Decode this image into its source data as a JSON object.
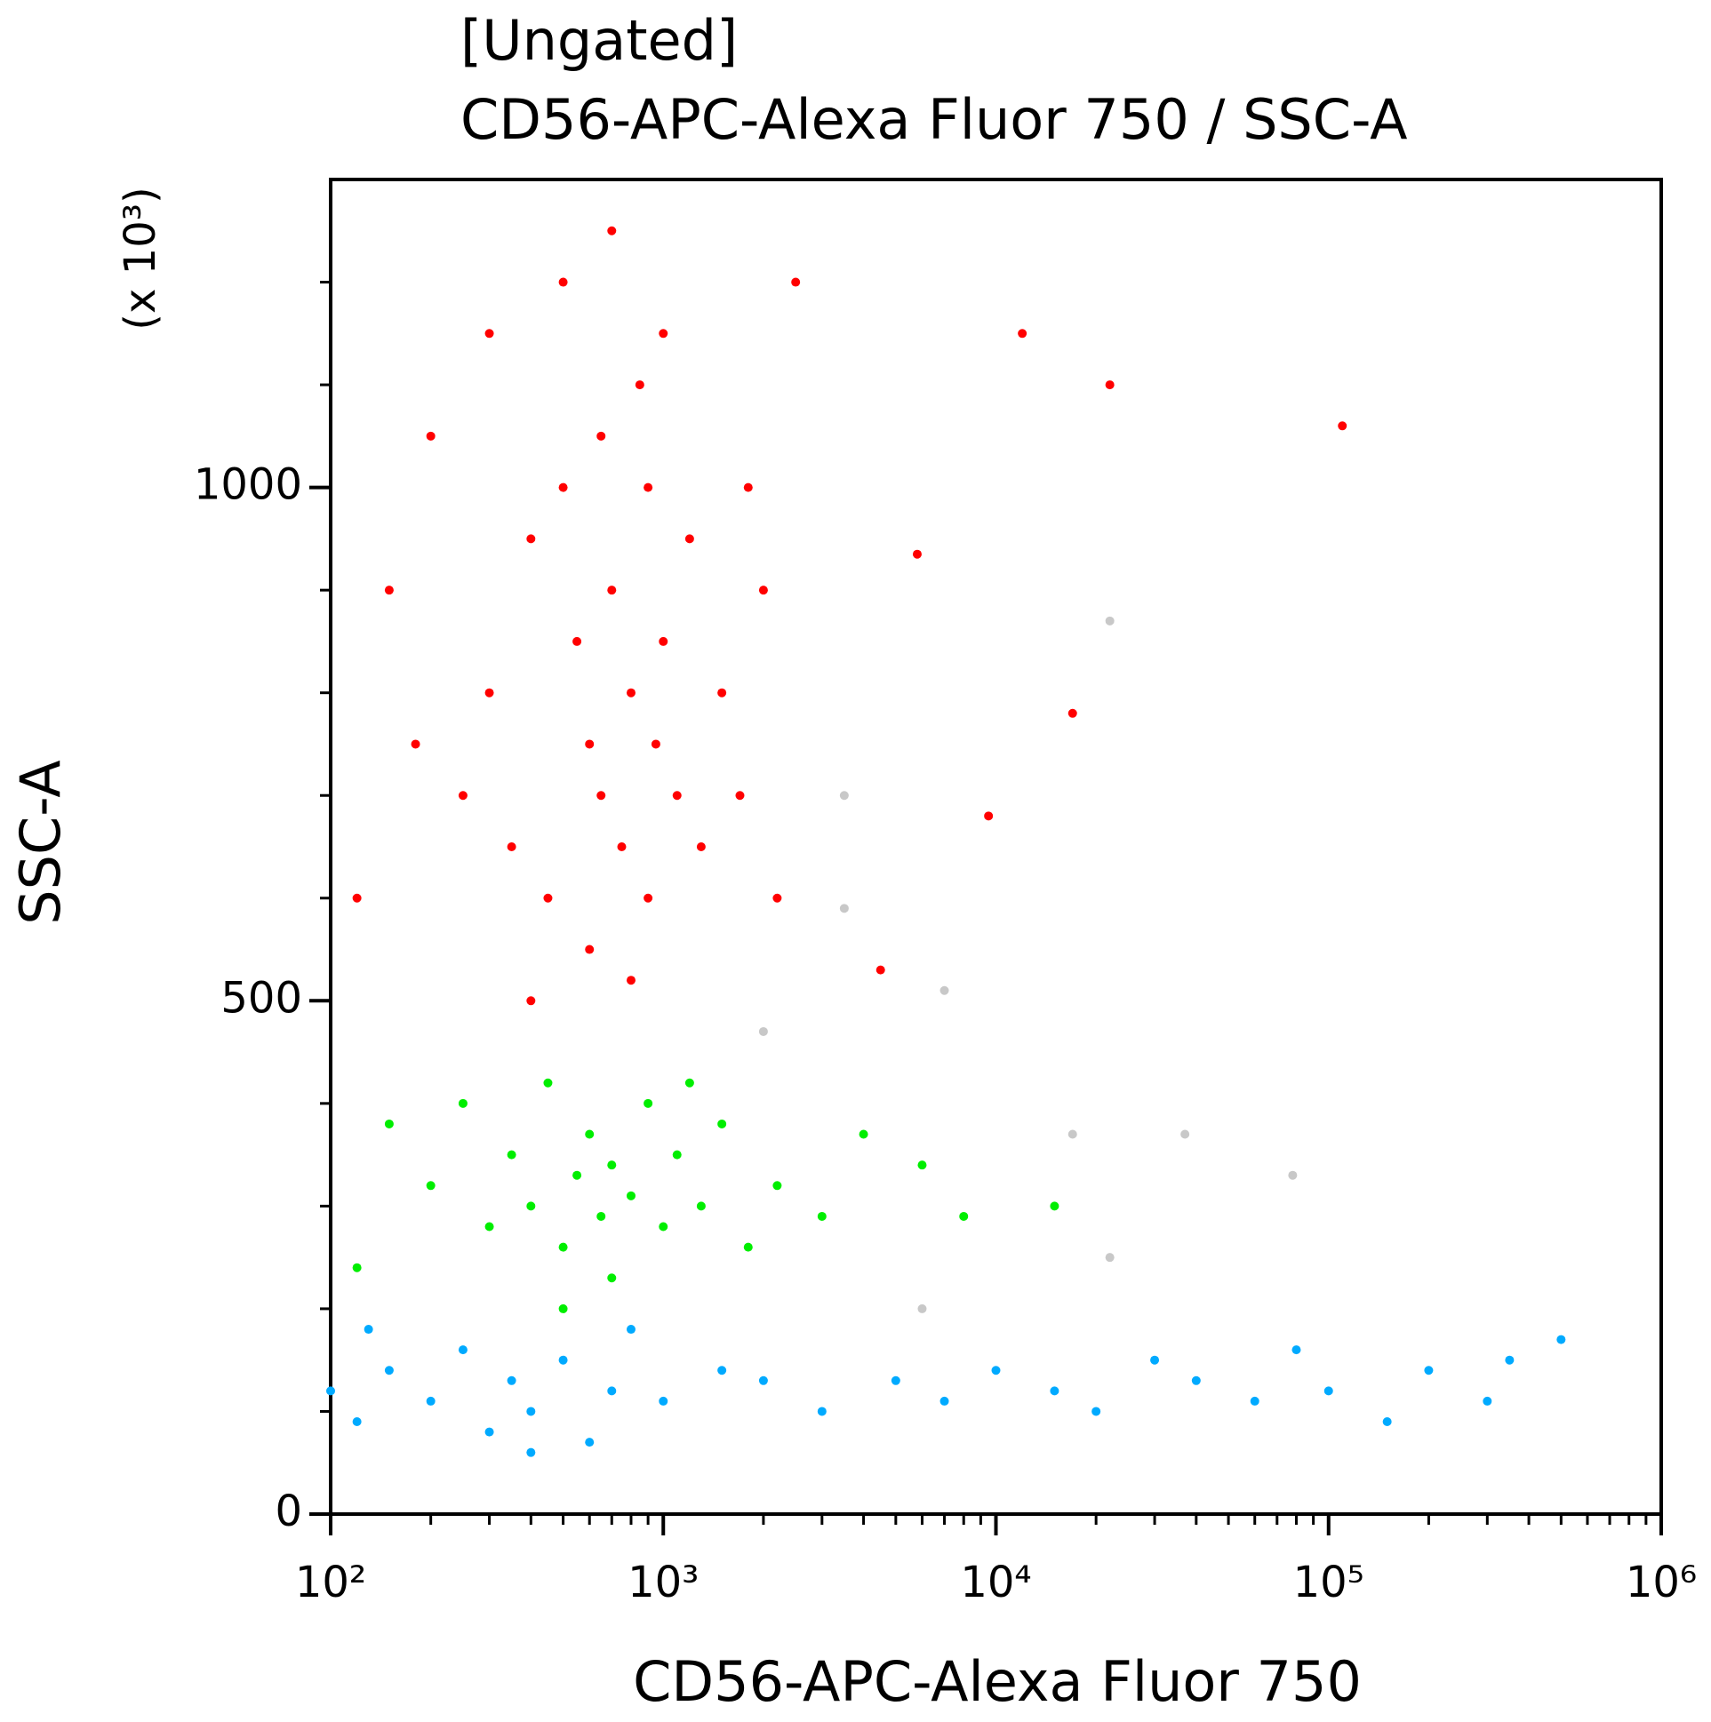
{
  "chart_data": {
    "type": "scatter",
    "title": "[Ungated]",
    "subtitle": "CD56-APC-Alexa Fluor 750 / SSC-A",
    "x_label": "CD56-APC-Alexa Fluor 750",
    "y_label": "SSC-A",
    "y_unit": "(x 10³)",
    "x_scale": "log",
    "xlim": [
      100,
      1000000
    ],
    "xticks": [
      {
        "value": 100,
        "label": "10²"
      },
      {
        "value": 1000,
        "label": "10³"
      },
      {
        "value": 10000,
        "label": "10⁴"
      },
      {
        "value": 100000,
        "label": "10⁵"
      },
      {
        "value": 1000000,
        "label": "10⁶"
      }
    ],
    "xminorticks": [
      200,
      300,
      400,
      500,
      600,
      700,
      800,
      900,
      2000,
      3000,
      4000,
      5000,
      6000,
      7000,
      8000,
      9000,
      20000,
      30000,
      40000,
      50000,
      60000,
      70000,
      80000,
      90000,
      200000,
      300000,
      400000,
      500000,
      600000,
      700000,
      800000,
      900000
    ],
    "ylim": [
      0,
      1300
    ],
    "yticks": [
      0,
      500,
      1000
    ],
    "yminorticks": [
      100,
      200,
      300,
      400,
      600,
      700,
      800,
      900,
      1100,
      1200
    ],
    "series": [
      {
        "name": null,
        "color": "#ff0000",
        "x": [
          150,
          200,
          250,
          300,
          350,
          400,
          450,
          500,
          550,
          600,
          650,
          700,
          750,
          800,
          850,
          900,
          950,
          1000,
          1100,
          1200,
          1300,
          1500,
          1700,
          2000,
          2500,
          500,
          600,
          800,
          400,
          300,
          700,
          1000,
          120,
          180,
          2200,
          1800,
          12000,
          22000,
          110000,
          17000,
          9500,
          5800,
          4500,
          650,
          900
        ],
        "values": [
          900,
          1050,
          700,
          800,
          650,
          950,
          600,
          1000,
          850,
          750,
          700,
          900,
          650,
          800,
          1100,
          600,
          750,
          850,
          700,
          950,
          650,
          800,
          700,
          900,
          1200,
          1200,
          550,
          520,
          500,
          1150,
          1250,
          1150,
          600,
          750,
          600,
          1000,
          1150,
          1100,
          1060,
          780,
          680,
          935,
          530,
          1050,
          1000
        ]
      },
      {
        "name": null,
        "color": "#00ee00",
        "x": [
          150,
          200,
          250,
          300,
          350,
          400,
          450,
          500,
          550,
          600,
          650,
          700,
          800,
          900,
          1000,
          1100,
          1300,
          1500,
          1800,
          2200,
          3000,
          4000,
          6000,
          8000,
          15000,
          120,
          700,
          500,
          1200
        ],
        "values": [
          380,
          320,
          400,
          280,
          350,
          300,
          420,
          260,
          330,
          370,
          290,
          340,
          310,
          400,
          280,
          350,
          300,
          380,
          260,
          320,
          290,
          370,
          340,
          290,
          300,
          240,
          230,
          200,
          420
        ]
      },
      {
        "name": null,
        "color": "#00aaff",
        "x": [
          100,
          120,
          150,
          200,
          250,
          300,
          350,
          400,
          500,
          600,
          700,
          1000,
          1500,
          2000,
          3000,
          5000,
          7000,
          10000,
          15000,
          20000,
          30000,
          40000,
          60000,
          80000,
          100000,
          150000,
          200000,
          300000,
          350000,
          500000,
          400,
          800,
          130
        ],
        "values": [
          120,
          90,
          140,
          110,
          160,
          80,
          130,
          100,
          150,
          70,
          120,
          110,
          140,
          130,
          100,
          130,
          110,
          140,
          120,
          100,
          150,
          130,
          110,
          160,
          120,
          90,
          140,
          110,
          150,
          170,
          60,
          180,
          180
        ]
      },
      {
        "name": null,
        "color": "#c8c8c8",
        "x": [
          3500,
          3500,
          7000,
          22000,
          17000,
          37000,
          78000,
          22000,
          2000,
          6000
        ],
        "values": [
          700,
          590,
          510,
          870,
          370,
          370,
          330,
          250,
          470,
          200
        ]
      }
    ]
  }
}
